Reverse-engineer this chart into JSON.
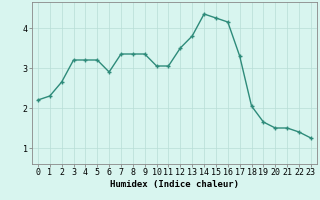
{
  "x": [
    0,
    1,
    2,
    3,
    4,
    5,
    6,
    7,
    8,
    9,
    10,
    11,
    12,
    13,
    14,
    15,
    16,
    17,
    18,
    19,
    20,
    21,
    22,
    23
  ],
  "y": [
    2.2,
    2.3,
    2.65,
    3.2,
    3.2,
    3.2,
    2.9,
    3.35,
    3.35,
    3.35,
    3.05,
    3.05,
    3.5,
    3.8,
    4.35,
    4.25,
    4.15,
    3.3,
    2.05,
    1.65,
    1.5,
    1.5,
    1.4,
    1.25
  ],
  "line_color": "#2e8b7a",
  "marker": "+",
  "marker_color": "#2e8b7a",
  "bg_color": "#d8f5ef",
  "grid_color": "#b8ddd6",
  "xlabel": "Humidex (Indice chaleur)",
  "xlim": [
    -0.5,
    23.5
  ],
  "ylim": [
    0.6,
    4.65
  ],
  "yticks": [
    1,
    2,
    3,
    4
  ],
  "xticks": [
    0,
    1,
    2,
    3,
    4,
    5,
    6,
    7,
    8,
    9,
    10,
    11,
    12,
    13,
    14,
    15,
    16,
    17,
    18,
    19,
    20,
    21,
    22,
    23
  ],
  "xlabel_fontsize": 6.5,
  "tick_fontsize": 6.0,
  "linewidth": 1.0,
  "markersize": 3.5,
  "spine_color": "#888888"
}
